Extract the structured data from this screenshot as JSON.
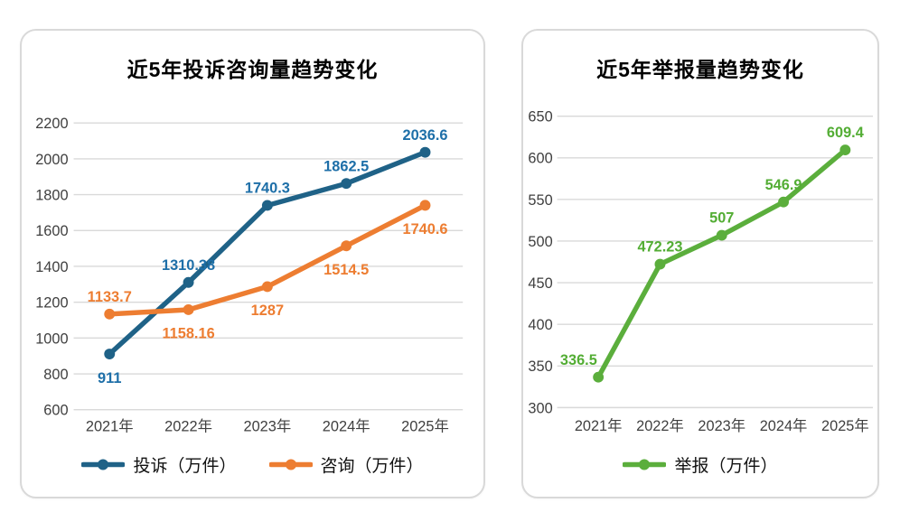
{
  "styles": {
    "background": "#FFFFFF",
    "card_border_color": "#D9D9D9",
    "grid_color": "#D9D9D9",
    "axis_text_color": "#3F3F3F",
    "title_color": "#000000",
    "legend_text_color": "#111111"
  },
  "chart_data": [
    {
      "type": "line",
      "title": "近5年投诉咨询量趋势变化",
      "categories": [
        "2021年",
        "2022年",
        "2023年",
        "2024年",
        "2025年"
      ],
      "series": [
        {
          "name": "投诉（万件）",
          "line_color": "#1F6287",
          "label_color": "#1E6FA8",
          "values": [
            911,
            1310.38,
            1740.3,
            1862.5,
            2036.6
          ],
          "label_side": [
            "below",
            "above",
            "above",
            "above",
            "above"
          ]
        },
        {
          "name": "咨询（万件）",
          "line_color": "#ED7D31",
          "label_color": "#ED7D31",
          "values": [
            1133.7,
            1158.16,
            1287,
            1514.5,
            1740.6
          ],
          "label_side": [
            "above",
            "below",
            "below",
            "below",
            "below"
          ]
        }
      ],
      "xlabel": "",
      "ylabel": "",
      "ylim": [
        600,
        2200
      ],
      "ytick_step": 200,
      "yticks": [
        600,
        800,
        1000,
        1200,
        1400,
        1600,
        1800,
        2000,
        2200
      ],
      "grid": true,
      "legend_position": "bottom"
    },
    {
      "type": "line",
      "title": "近5年举报量趋势变化",
      "categories": [
        "2021年",
        "2022年",
        "2023年",
        "2024年",
        "2025年"
      ],
      "series": [
        {
          "name": "举报（万件）",
          "line_color": "#5BAE3C",
          "label_color": "#53AD34",
          "values": [
            336.5,
            472.23,
            507,
            546.9,
            609.4
          ],
          "label_side": [
            "above-left",
            "above",
            "above",
            "above",
            "above"
          ]
        }
      ],
      "xlabel": "",
      "ylabel": "",
      "ylim": [
        300,
        650
      ],
      "ytick_step": 50,
      "yticks": [
        300,
        350,
        400,
        450,
        500,
        550,
        600,
        650
      ],
      "grid": true,
      "legend_position": "bottom"
    }
  ]
}
